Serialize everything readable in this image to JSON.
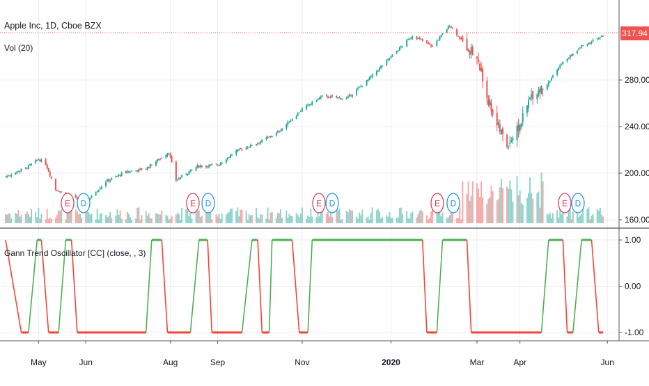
{
  "main_pane": {
    "title": "Apple Inc, 1D, Cboe BZX",
    "volume_label": "Vol (20)",
    "last_price": "317.94",
    "y_ticks": [
      "280.00",
      "240.00",
      "200.00",
      "160.00"
    ]
  },
  "oscillator_pane": {
    "label": "Gann Trend Oscillator [CC] (close, , 3)",
    "y_ticks": [
      "1.00",
      "0.00",
      "-1.00"
    ]
  },
  "x_axis": {
    "labels": [
      "May",
      "Jun",
      "Aug",
      "Sep",
      "Nov",
      "2020",
      "Mar",
      "Apr",
      "Jun"
    ]
  },
  "events": [
    "E",
    "D",
    "E",
    "D",
    "E",
    "D",
    "E",
    "D",
    "E",
    "D"
  ],
  "colors": {
    "up": "#26a69a",
    "down": "#ef5350",
    "volume_up": "#8fd3cc",
    "volume_down": "#f7a9a7",
    "osc_up": "#4caf50",
    "osc_down": "#f44336",
    "earnings": "#e0405a",
    "dividend": "#2196f3",
    "grid": "#e9ecf1"
  },
  "chart_data": [
    {
      "type": "candlestick",
      "title": "Apple Inc, 1D, Cboe BZX",
      "ylim": [
        155,
        330
      ],
      "x": [
        "2019-04-08",
        "2020-05-29"
      ],
      "series": [
        {
          "name": "close",
          "points": [
            [
              "2019-04-08",
              197
            ],
            [
              "2019-04-23",
              205
            ],
            [
              "2019-05-01",
              212
            ],
            [
              "2019-05-06",
              208
            ],
            [
              "2019-05-13",
              186
            ],
            [
              "2019-05-20",
              182
            ],
            [
              "2019-06-03",
              175
            ],
            [
              "2019-06-17",
              193
            ],
            [
              "2019-07-01",
              201
            ],
            [
              "2019-07-15",
              204
            ],
            [
              "2019-07-31",
              218
            ],
            [
              "2019-08-05",
              194
            ],
            [
              "2019-08-20",
              206
            ],
            [
              "2019-09-03",
              207
            ],
            [
              "2019-09-16",
              219
            ],
            [
              "2019-10-01",
              226
            ],
            [
              "2019-10-15",
              235
            ],
            [
              "2019-11-01",
              255
            ],
            [
              "2019-11-15",
              266
            ],
            [
              "2019-12-02",
              264
            ],
            [
              "2019-12-16",
              279
            ],
            [
              "2020-01-02",
              300
            ],
            [
              "2020-01-17",
              318
            ],
            [
              "2020-01-31",
              309
            ],
            [
              "2020-02-12",
              327
            ],
            [
              "2020-02-21",
              313
            ],
            [
              "2020-03-02",
              299
            ],
            [
              "2020-03-09",
              266
            ],
            [
              "2020-03-16",
              242
            ],
            [
              "2020-03-23",
              224
            ],
            [
              "2020-04-01",
              241
            ],
            [
              "2020-04-09",
              267
            ],
            [
              "2020-04-20",
              276
            ],
            [
              "2020-04-30",
              294
            ],
            [
              "2020-05-14",
              309
            ],
            [
              "2020-05-29",
              317.94
            ]
          ]
        }
      ],
      "volume_bars_visible": true
    },
    {
      "type": "line",
      "title": "Gann Trend Oscillator [CC] (close, , 3)",
      "ylim": [
        -1.3,
        1.3
      ],
      "series": [
        {
          "name": "Gann Trend Oscillator",
          "points": [
            [
              "2019-04-08",
              1
            ],
            [
              "2019-04-19",
              -1
            ],
            [
              "2019-04-24",
              -1
            ],
            [
              "2019-04-30",
              1
            ],
            [
              "2019-05-03",
              1
            ],
            [
              "2019-05-08",
              -1
            ],
            [
              "2019-05-15",
              -1
            ],
            [
              "2019-05-20",
              1
            ],
            [
              "2019-05-24",
              1
            ],
            [
              "2019-05-28",
              -1
            ],
            [
              "2019-07-15",
              -1
            ],
            [
              "2019-07-19",
              1
            ],
            [
              "2019-07-26",
              1
            ],
            [
              "2019-07-30",
              -1
            ],
            [
              "2019-08-15",
              -1
            ],
            [
              "2019-08-21",
              1
            ],
            [
              "2019-08-27",
              1
            ],
            [
              "2019-08-30",
              -1
            ],
            [
              "2019-09-20",
              -1
            ],
            [
              "2019-09-27",
              1
            ],
            [
              "2019-10-01",
              1
            ],
            [
              "2019-10-04",
              -1
            ],
            [
              "2019-10-09",
              -1
            ],
            [
              "2019-10-11",
              1
            ],
            [
              "2019-10-25",
              1
            ],
            [
              "2019-10-30",
              -1
            ],
            [
              "2019-11-05",
              -1
            ],
            [
              "2019-11-08",
              1
            ],
            [
              "2020-01-24",
              1
            ],
            [
              "2020-01-27",
              -1
            ],
            [
              "2020-02-03",
              -1
            ],
            [
              "2020-02-07",
              1
            ],
            [
              "2020-02-24",
              1
            ],
            [
              "2020-02-27",
              -1
            ],
            [
              "2020-04-16",
              -1
            ],
            [
              "2020-04-21",
              1
            ],
            [
              "2020-05-01",
              1
            ],
            [
              "2020-05-04",
              -1
            ],
            [
              "2020-05-08",
              -1
            ],
            [
              "2020-05-14",
              1
            ],
            [
              "2020-05-21",
              1
            ],
            [
              "2020-05-26",
              -1
            ],
            [
              "2020-05-29",
              -1
            ]
          ]
        }
      ]
    }
  ]
}
